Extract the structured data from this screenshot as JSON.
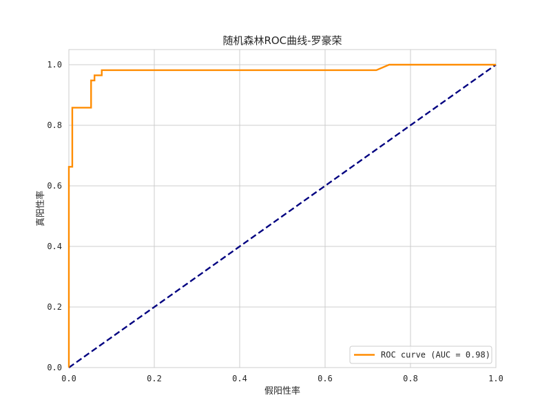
{
  "chart_data": {
    "type": "line",
    "title": "随机森林ROC曲线-罗豪荣",
    "xlabel": "假阳性率",
    "ylabel": "真阳性率",
    "xlim": [
      0.0,
      1.0
    ],
    "ylim": [
      0.0,
      1.05
    ],
    "xticks": [
      0.0,
      0.2,
      0.4,
      0.6,
      0.8,
      1.0
    ],
    "xtick_labels": [
      "0.0",
      "0.2",
      "0.4",
      "0.6",
      "0.8",
      "1.0"
    ],
    "yticks": [
      0.0,
      0.2,
      0.4,
      0.6,
      0.8,
      1.0
    ],
    "ytick_labels": [
      "0.0",
      "0.2",
      "0.4",
      "0.6",
      "0.8",
      "1.0"
    ],
    "grid": true,
    "legend_position": "lower-right",
    "series": [
      {
        "name": "ROC curve (AUC = 0.98)",
        "color": "#ff8c00",
        "style": "solid",
        "x": [
          0.0,
          0.0,
          0.008,
          0.008,
          0.052,
          0.052,
          0.06,
          0.06,
          0.077,
          0.077,
          0.72,
          0.75,
          1.0
        ],
        "y": [
          0.0,
          0.663,
          0.663,
          0.858,
          0.858,
          0.948,
          0.948,
          0.965,
          0.965,
          0.982,
          0.982,
          1.0,
          1.0
        ]
      },
      {
        "color": "#000080",
        "style": "dashed",
        "x": [
          0.0,
          1.0
        ],
        "y": [
          0.0,
          1.0
        ]
      }
    ]
  }
}
